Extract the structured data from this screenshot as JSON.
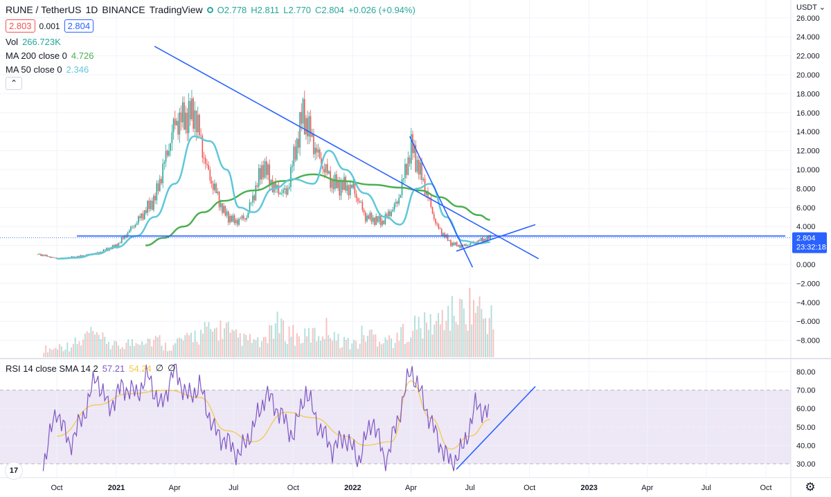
{
  "header": {
    "symbol": "RUNE / TetherUS",
    "interval": "1D",
    "exchange": "BINANCE",
    "source": "TradingView",
    "open": "O2.778",
    "high": "H2.811",
    "low": "L2.770",
    "close": "C2.804",
    "change": "+0.026 (+0.94%)",
    "bid": "2.803",
    "spread": "0.001",
    "ask": "2.804"
  },
  "indicators": {
    "vol_label": "Vol",
    "vol_value": "266.723K",
    "ma200_label": "MA 200 close 0",
    "ma200_value": "4.726",
    "ma50_label": "MA 50 close 0",
    "ma50_value": "2.346",
    "rsi_label": "RSI 14 close SMA 14 2",
    "rsi_value": "57.21",
    "rsi_sma_value": "54.24",
    "rsi_extra1": "∅",
    "rsi_extra2": "∅",
    "collapse_glyph": "⌃"
  },
  "price_axis": {
    "currency": "USDT",
    "last_price": "2.804",
    "countdown": "23:32:18",
    "ticks": [
      "26.000",
      "24.000",
      "22.000",
      "20.000",
      "18.000",
      "16.000",
      "14.000",
      "12.000",
      "10.000",
      "8.000",
      "6.000",
      "4.000",
      "2.000",
      "0.000",
      "−2.000",
      "−4.000",
      "−6.000",
      "−8.000"
    ]
  },
  "rsi_axis": {
    "ticks": [
      "80.00",
      "70.00",
      "60.00",
      "50.00",
      "40.00",
      "30.00"
    ]
  },
  "time_axis": {
    "labels": [
      "Oct",
      "2021",
      "Apr",
      "Jul",
      "Oct",
      "2022",
      "Apr",
      "Jul",
      "Oct",
      "2023",
      "Apr",
      "Jul",
      "Oct"
    ],
    "bold": [
      false,
      true,
      false,
      false,
      false,
      true,
      false,
      false,
      false,
      true,
      false,
      false,
      false
    ]
  },
  "icons": {
    "settings": "gear-icon",
    "logo": "tradingview-logo-icon",
    "status": "market-status-icon"
  },
  "colors": {
    "candle_up": "#26a69a",
    "candle_down": "#ef5350",
    "ma200": "#4caf50",
    "ma50": "#5ec8d8",
    "rsi": "#7e57c2",
    "rsi_sma": "#f5c842",
    "trendline": "#2962ff",
    "band": "#ede7f6"
  },
  "chart_data": [
    {
      "type": "line",
      "title": "RUNE / TetherUS · 1D · BINANCE",
      "x_range": [
        "2020-09",
        "2023-10"
      ],
      "ylim": [
        -9,
        26
      ],
      "series": [
        {
          "name": "RUNE / TetherUS",
          "style": "candlestick-close-approx",
          "x": [
            "2020-09-01",
            "2020-10-01",
            "2020-11-01",
            "2020-12-01",
            "2021-01-01",
            "2021-02-01",
            "2021-03-01",
            "2021-04-01",
            "2021-05-01",
            "2021-05-20",
            "2021-06-15",
            "2021-07-01",
            "2021-07-20",
            "2021-08-15",
            "2021-09-01",
            "2021-09-20",
            "2021-10-15",
            "2021-11-10",
            "2021-12-01",
            "2022-01-01",
            "2022-01-20",
            "2022-02-15",
            "2022-03-10",
            "2022-04-01",
            "2022-04-20",
            "2022-05-10",
            "2022-06-01",
            "2022-06-18",
            "2022-07-10",
            "2022-08-01"
          ],
          "values": [
            1.1,
            0.6,
            0.8,
            1.2,
            2.0,
            4.5,
            7.0,
            15.0,
            16.0,
            10.0,
            5.5,
            4.5,
            5.0,
            10.5,
            8.0,
            7.5,
            16.0,
            11.0,
            8.5,
            8.0,
            5.0,
            4.5,
            6.5,
            12.5,
            8.5,
            4.0,
            2.2,
            1.9,
            2.4,
            2.8
          ]
        },
        {
          "name": "MA 200 close 0",
          "x": [
            "2021-02-15",
            "2021-03-15",
            "2021-04-15",
            "2021-05-15",
            "2021-06-15",
            "2021-08-01",
            "2021-09-15",
            "2021-11-01",
            "2021-12-15",
            "2022-02-01",
            "2022-03-15",
            "2022-04-15",
            "2022-05-15",
            "2022-06-15",
            "2022-07-15",
            "2022-08-01"
          ],
          "values": [
            2.0,
            2.8,
            4.0,
            5.5,
            6.7,
            7.8,
            8.8,
            9.5,
            8.8,
            8.4,
            8.1,
            7.8,
            7.1,
            6.1,
            5.2,
            4.7
          ]
        },
        {
          "name": "MA 50 close 0",
          "x": [
            "2020-10-01",
            "2020-11-01",
            "2020-12-01",
            "2021-01-01",
            "2021-02-01",
            "2021-03-01",
            "2021-04-01",
            "2021-05-01",
            "2021-05-25",
            "2021-06-20",
            "2021-07-10",
            "2021-08-01",
            "2021-09-01",
            "2021-10-01",
            "2021-11-01",
            "2021-11-25",
            "2021-12-20",
            "2022-01-20",
            "2022-02-20",
            "2022-03-15",
            "2022-04-10",
            "2022-05-01",
            "2022-05-25",
            "2022-06-20",
            "2022-07-15",
            "2022-08-01"
          ],
          "values": [
            0.6,
            0.7,
            1.1,
            1.8,
            3.0,
            5.0,
            8.5,
            13.5,
            13.0,
            10.0,
            6.0,
            5.5,
            8.0,
            9.0,
            8.5,
            12.0,
            10.0,
            7.5,
            5.0,
            4.2,
            8.0,
            8.5,
            5.0,
            2.5,
            2.2,
            2.35
          ]
        }
      ],
      "trendlines": [
        {
          "name": "descending-resistance",
          "x": [
            "2021-03-01",
            "2022-10-15"
          ],
          "y": [
            23.0,
            0.6
          ]
        },
        {
          "name": "horizontal-support",
          "x": [
            "2020-11-01",
            "2023-10-31"
          ],
          "y": [
            3.0,
            3.0
          ]
        },
        {
          "name": "steep-downtrend",
          "x": [
            "2022-03-30",
            "2022-07-05"
          ],
          "y": [
            13.5,
            -0.3
          ]
        },
        {
          "name": "rising-wedge-support",
          "x": [
            "2022-06-10",
            "2022-10-10"
          ],
          "y": [
            1.4,
            4.2
          ]
        }
      ],
      "last_price": 2.804
    },
    {
      "type": "line",
      "title": "RSI 14 close SMA 14 2",
      "ylim": [
        25,
        85
      ],
      "bands": [
        30,
        70
      ],
      "series": [
        {
          "name": "RSI",
          "x": [
            "2020-09-10",
            "2020-10-01",
            "2020-10-20",
            "2020-11-10",
            "2020-12-01",
            "2020-12-20",
            "2021-01-10",
            "2021-02-01",
            "2021-02-20",
            "2021-03-10",
            "2021-04-01",
            "2021-04-20",
            "2021-05-10",
            "2021-06-01",
            "2021-06-20",
            "2021-07-10",
            "2021-08-01",
            "2021-08-20",
            "2021-09-10",
            "2021-10-01",
            "2021-10-20",
            "2021-11-10",
            "2021-12-01",
            "2021-12-20",
            "2022-01-10",
            "2022-02-01",
            "2022-02-20",
            "2022-03-10",
            "2022-04-01",
            "2022-04-20",
            "2022-05-10",
            "2022-06-01",
            "2022-06-20",
            "2022-07-10",
            "2022-08-01"
          ],
          "values": [
            30,
            60,
            40,
            55,
            78,
            60,
            72,
            68,
            78,
            60,
            82,
            66,
            72,
            48,
            42,
            35,
            50,
            68,
            58,
            45,
            70,
            50,
            38,
            45,
            32,
            55,
            30,
            52,
            82,
            64,
            45,
            30,
            38,
            62,
            57
          ]
        },
        {
          "name": "SMA",
          "x": [
            "2020-10-01",
            "2020-12-01",
            "2021-01-20",
            "2021-03-20",
            "2021-05-10",
            "2021-06-20",
            "2021-08-01",
            "2021-09-20",
            "2021-11-01",
            "2021-12-20",
            "2022-01-20",
            "2022-03-01",
            "2022-04-01",
            "2022-05-01",
            "2022-06-01",
            "2022-07-01",
            "2022-08-01"
          ],
          "values": [
            45,
            62,
            68,
            70,
            66,
            48,
            42,
            58,
            55,
            45,
            40,
            42,
            75,
            55,
            38,
            45,
            54
          ]
        }
      ]
    },
    {
      "type": "bar",
      "title": "Vol",
      "x_range": [
        "2020-09",
        "2022-08"
      ],
      "values_relative": [
        0.15,
        0.2,
        0.25,
        0.4,
        0.3,
        0.2,
        0.25,
        0.35,
        0.3,
        0.2,
        0.3,
        0.4,
        0.45,
        0.5,
        0.35,
        0.3,
        0.25,
        0.55,
        0.45,
        0.35,
        0.4,
        0.5,
        0.3,
        0.25,
        0.4,
        0.35,
        0.3,
        0.45,
        0.55,
        0.6,
        0.75,
        0.8,
        0.9,
        0.7,
        0.55
      ]
    }
  ]
}
